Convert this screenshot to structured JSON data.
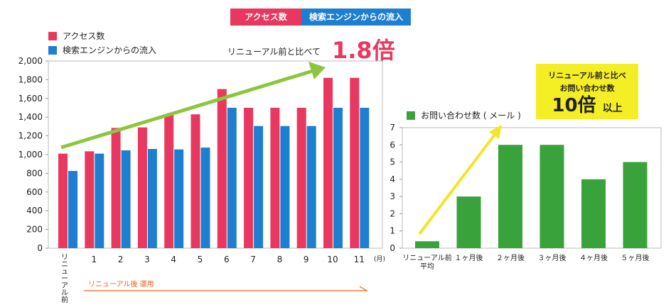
{
  "tags": {
    "pink": "アクセス数",
    "blue": "検索エンジンからの流入"
  },
  "compare": {
    "text": "リニューアル前と比べて",
    "value": "1.8倍"
  },
  "callout": {
    "line1": "リニューアル前と比べ",
    "line2": "お問い合わせ数",
    "value": "10倍",
    "suffix": "以上"
  },
  "colors": {
    "pink": "#e8385f",
    "blue": "#1e7fd0",
    "green": "#3aa23a",
    "arrow_green": "#8cc63e",
    "arrow_yellow": "#f0e62a",
    "orange": "#f0601f",
    "callout_bg": "#f4ee24"
  },
  "chart_data": [
    {
      "type": "bar",
      "categories": [
        "リニューアル前",
        "1",
        "2",
        "3",
        "4",
        "5",
        "6",
        "7",
        "8",
        "9",
        "10",
        "11"
      ],
      "x_unit": "(月)",
      "series": [
        {
          "name": "アクセス数",
          "values": [
            1010,
            1035,
            1285,
            1290,
            1430,
            1430,
            1700,
            1500,
            1500,
            1500,
            1820,
            1820
          ]
        },
        {
          "name": "検索エンジンからの流入",
          "values": [
            825,
            1010,
            1045,
            1060,
            1055,
            1075,
            1500,
            1305,
            1305,
            1305,
            1500,
            1500
          ]
        }
      ],
      "ylim": [
        0,
        2000
      ],
      "yticks": [
        "0",
        "200",
        "400",
        "600",
        "800",
        "1,000",
        "1,200",
        "1,400",
        "1,600",
        "1,800",
        "2,000"
      ],
      "annotation": "リニューアル後 運用",
      "grid": false,
      "legend": "top-left"
    },
    {
      "type": "bar",
      "categories": [
        "リニューアル前\n平均",
        "１ヶ月後",
        "２ヶ月後",
        "３ヶ月後",
        "４ヶ月後",
        "５ヶ月後"
      ],
      "series": [
        {
          "name": "お問い合わせ数 ( メール )",
          "values": [
            0.4,
            3,
            6,
            6,
            4,
            5
          ]
        }
      ],
      "ylim": [
        0,
        7
      ],
      "yticks": [
        "0",
        "1",
        "2",
        "3",
        "4",
        "5",
        "6",
        "7"
      ],
      "grid": false,
      "legend": "top-left"
    }
  ]
}
